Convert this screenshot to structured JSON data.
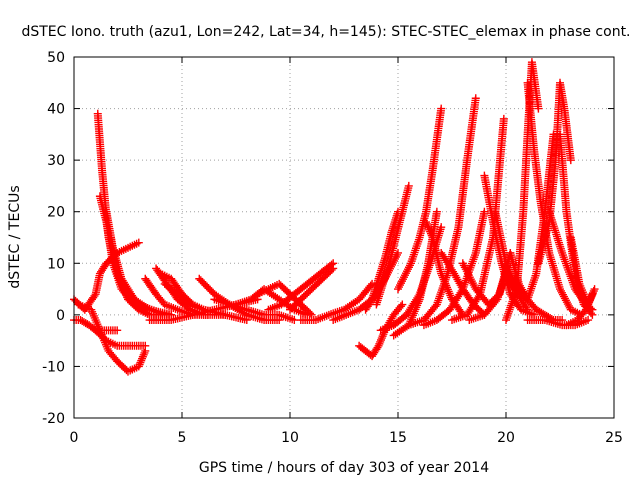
{
  "chart_data": {
    "type": "scatter",
    "title": "dSTEC Iono. truth (azu1, Lon=242, Lat=34, h=145): STEC-STEC_elemax in phase cont.",
    "xlabel": "GPS time / hours of day 303 of year 2014",
    "ylabel": "dSTEC  / TECUs",
    "xlim": [
      0,
      25
    ],
    "ylim": [
      -20,
      50
    ],
    "xticks": [
      0,
      5,
      10,
      15,
      20,
      25
    ],
    "yticks": [
      -20,
      -10,
      0,
      10,
      20,
      30,
      40,
      50
    ],
    "grid": true,
    "legend": "none",
    "marker": "plus",
    "color": "#ff0000",
    "series": [
      {
        "x": [
          0.0,
          0.5,
          1.0,
          1.2,
          1.5,
          2.0,
          2.5,
          3.0
        ],
        "y": [
          3,
          1,
          4,
          8,
          10,
          12,
          13,
          14
        ]
      },
      {
        "x": [
          0.0,
          0.3,
          0.7,
          1.0,
          1.5,
          2.0
        ],
        "y": [
          -1,
          -1,
          -2,
          -3,
          -3,
          -3
        ]
      },
      {
        "x": [
          0.2,
          0.8,
          1.2,
          1.6,
          2.0,
          2.5,
          3.0,
          3.3
        ],
        "y": [
          2,
          1,
          -3,
          -7,
          -9,
          -11,
          -10,
          -7
        ]
      },
      {
        "x": [
          1.0,
          1.5,
          2.0,
          2.5,
          3.0,
          3.3
        ],
        "y": [
          -3,
          -5,
          -6,
          -6,
          -6,
          -6
        ]
      },
      {
        "x": [
          1.1,
          1.3,
          1.6,
          2.0,
          2.5,
          3.0,
          3.5,
          4.0
        ],
        "y": [
          39,
          28,
          15,
          8,
          3,
          1,
          0,
          0
        ]
      },
      {
        "x": [
          1.2,
          1.5,
          1.8,
          2.2,
          2.8,
          3.5,
          4.5
        ],
        "y": [
          23,
          18,
          10,
          5,
          2,
          0,
          0
        ]
      },
      {
        "x": [
          1.5,
          1.8,
          2.2,
          2.8,
          3.5,
          4.5
        ],
        "y": [
          20,
          13,
          7,
          3,
          1,
          0
        ]
      },
      {
        "x": [
          1.7,
          2.0,
          2.5,
          3.0,
          3.6,
          4.2
        ],
        "y": [
          15,
          8,
          4,
          2,
          1,
          0
        ]
      },
      {
        "x": [
          3.3,
          3.8,
          4.2,
          4.8,
          5.5,
          6.2
        ],
        "y": [
          7,
          4,
          2,
          1,
          0,
          0
        ]
      },
      {
        "x": [
          3.8,
          4.3,
          4.8,
          5.4,
          6.0,
          7.0
        ],
        "y": [
          9,
          6,
          3,
          1,
          0,
          0
        ]
      },
      {
        "x": [
          4.0,
          4.5,
          5.0,
          5.5,
          6.0,
          7.0
        ],
        "y": [
          8,
          7,
          4,
          2,
          1,
          0
        ]
      },
      {
        "x": [
          4.2,
          4.8,
          5.4,
          6.0,
          7.0,
          8.0
        ],
        "y": [
          6,
          4,
          2,
          1,
          0,
          -1
        ]
      },
      {
        "x": [
          3.5,
          4.5,
          5.5,
          6.5,
          7.5,
          8.5
        ],
        "y": [
          -1,
          -1,
          0,
          1,
          2,
          3
        ]
      },
      {
        "x": [
          5.8,
          6.5,
          7.2,
          8.0,
          8.8,
          9.5
        ],
        "y": [
          7,
          4,
          2,
          0,
          -1,
          -1
        ]
      },
      {
        "x": [
          6.5,
          7.2,
          8.0,
          8.8,
          9.5,
          10.2
        ],
        "y": [
          3,
          2,
          1,
          0,
          0,
          -1
        ]
      },
      {
        "x": [
          7.5,
          8.2,
          8.8,
          9.5,
          10.2,
          10.8
        ],
        "y": [
          2,
          3,
          5,
          3,
          1,
          0
        ]
      },
      {
        "x": [
          8.5,
          9.0,
          9.5,
          10.0,
          10.5,
          11.0
        ],
        "y": [
          4,
          5,
          6,
          4,
          2,
          0
        ]
      },
      {
        "x": [
          9.0,
          9.6,
          10.2,
          10.8,
          11.4,
          12.0
        ],
        "y": [
          1,
          2,
          4,
          6,
          8,
          10
        ]
      },
      {
        "x": [
          10.0,
          10.5,
          11.0,
          11.5,
          12.0
        ],
        "y": [
          1,
          3,
          5,
          7,
          9
        ]
      },
      {
        "x": [
          10.5,
          11.2,
          11.8,
          12.5,
          13.2,
          13.8
        ],
        "y": [
          -1,
          -1,
          0,
          1,
          3,
          6
        ]
      },
      {
        "x": [
          12.0,
          12.6,
          13.2,
          13.8,
          14.4,
          15.0
        ],
        "y": [
          -1,
          0,
          1,
          3,
          7,
          12
        ]
      },
      {
        "x": [
          13.2,
          13.5,
          13.8,
          14.1,
          14.4,
          14.8,
          15.2
        ],
        "y": [
          -6,
          -7,
          -8,
          -6,
          -3,
          0,
          2
        ]
      },
      {
        "x": [
          13.5,
          13.8,
          14.1,
          14.4,
          14.7,
          15.0
        ],
        "y": [
          1,
          3,
          7,
          11,
          16,
          20
        ]
      },
      {
        "x": [
          14.0,
          14.3,
          14.6,
          14.9,
          15.2,
          15.5
        ],
        "y": [
          2,
          6,
          10,
          15,
          20,
          25
        ]
      },
      {
        "x": [
          14.2,
          14.8,
          15.4,
          16.0,
          16.5,
          17.0
        ],
        "y": [
          -3,
          -2,
          0,
          4,
          10,
          17
        ]
      },
      {
        "x": [
          14.8,
          15.5,
          16.0,
          16.4,
          16.8
        ],
        "y": [
          -4,
          -2,
          3,
          10,
          20
        ]
      },
      {
        "x": [
          15.0,
          15.6,
          16.0,
          16.3,
          16.6,
          17.0
        ],
        "y": [
          5,
          10,
          15,
          20,
          28,
          40
        ]
      },
      {
        "x": [
          16.3,
          16.6,
          17.0,
          17.5,
          18.0
        ],
        "y": [
          18,
          15,
          8,
          3,
          0
        ]
      },
      {
        "x": [
          15.5,
          16.2,
          16.8,
          17.3,
          17.8,
          18.2,
          18.6
        ],
        "y": [
          -2,
          -1,
          2,
          8,
          17,
          30,
          42
        ]
      },
      {
        "x": [
          16.2,
          16.8,
          17.4,
          18.0,
          18.6,
          19.0
        ],
        "y": [
          -2,
          -1,
          1,
          5,
          12,
          20
        ]
      },
      {
        "x": [
          17.0,
          17.6,
          18.0,
          18.5,
          19.0
        ],
        "y": [
          12,
          8,
          5,
          2,
          0
        ]
      },
      {
        "x": [
          17.5,
          18.2,
          18.8,
          19.4,
          19.9
        ],
        "y": [
          -1,
          0,
          4,
          15,
          38
        ]
      },
      {
        "x": [
          18.0,
          18.6,
          19.2,
          19.7,
          20.2
        ],
        "y": [
          10,
          5,
          2,
          4,
          12
        ]
      },
      {
        "x": [
          18.3,
          19.0,
          19.6,
          20.0,
          20.4,
          21.0
        ],
        "y": [
          -1,
          0,
          3,
          8,
          5,
          1
        ]
      },
      {
        "x": [
          19.0,
          19.4,
          19.8,
          20.2,
          20.7,
          21.3
        ],
        "y": [
          27,
          18,
          10,
          4,
          1,
          0
        ]
      },
      {
        "x": [
          19.5,
          20.0,
          20.5,
          21.0,
          21.4,
          21.8,
          22.2
        ],
        "y": [
          20,
          10,
          5,
          3,
          8,
          20,
          35
        ]
      },
      {
        "x": [
          20.2,
          20.6,
          21.0,
          21.4,
          21.8,
          22.2,
          22.6
        ],
        "y": [
          12,
          6,
          3,
          1,
          0,
          -1,
          -1
        ]
      },
      {
        "x": [
          20.0,
          20.5,
          20.8,
          21.0,
          21.2,
          21.5
        ],
        "y": [
          -1,
          5,
          20,
          35,
          49,
          40
        ]
      },
      {
        "x": [
          21.0,
          21.3,
          21.6,
          22.0,
          22.5,
          23.0,
          23.5
        ],
        "y": [
          45,
          32,
          22,
          12,
          5,
          1,
          0
        ]
      },
      {
        "x": [
          21.5,
          22.0,
          22.3,
          22.5,
          22.7,
          23.0
        ],
        "y": [
          10,
          18,
          30,
          45,
          40,
          30
        ]
      },
      {
        "x": [
          22.5,
          22.8,
          23.2,
          23.6,
          24.0
        ],
        "y": [
          35,
          20,
          8,
          2,
          0
        ]
      },
      {
        "x": [
          21.0,
          21.8,
          22.6,
          23.2,
          23.8
        ],
        "y": [
          -1,
          -1,
          -2,
          -2,
          -1
        ]
      },
      {
        "x": [
          22.0,
          22.6,
          23.2,
          23.7,
          24.0
        ],
        "y": [
          20,
          12,
          5,
          2,
          1
        ]
      },
      {
        "x": [
          23.0,
          23.4,
          23.8,
          24.1
        ],
        "y": [
          15,
          6,
          2,
          5
        ]
      },
      {
        "x": [
          22.8,
          23.3,
          23.7,
          24.0
        ],
        "y": [
          -2,
          -1,
          1,
          4
        ]
      }
    ]
  }
}
